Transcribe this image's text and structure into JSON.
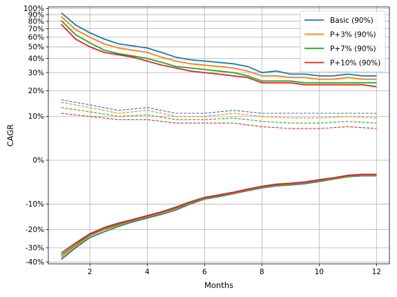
{
  "chart_data": {
    "type": "line",
    "xlabel": "Months",
    "ylabel": "CAGR",
    "xlim": [
      0.55,
      12.45
    ],
    "x_ticks": [
      2,
      4,
      6,
      8,
      10,
      12
    ],
    "y_scale": "symlog",
    "y_ticks": [
      {
        "value": 1.0,
        "label": "100%"
      },
      {
        "value": 0.9,
        "label": "90%"
      },
      {
        "value": 0.8,
        "label": "80%"
      },
      {
        "value": 0.7,
        "label": "70%"
      },
      {
        "value": 0.6,
        "label": "60%"
      },
      {
        "value": 0.5,
        "label": "50%"
      },
      {
        "value": 0.4,
        "label": "40%"
      },
      {
        "value": 0.3,
        "label": "30%"
      },
      {
        "value": 0.2,
        "label": "20%"
      },
      {
        "value": 0.1,
        "label": "10%"
      },
      {
        "value": 0.0,
        "label": "0%"
      },
      {
        "value": -0.1,
        "label": "-10%"
      },
      {
        "value": -0.2,
        "label": "-20%"
      },
      {
        "value": -0.3,
        "label": "-30%"
      },
      {
        "value": -0.4,
        "label": "-40%"
      }
    ],
    "grid": true,
    "legend_position": "top-right",
    "legend": [
      "Basic (90%)",
      "P+3% (90%)",
      "P+7% (90%)",
      "P+10% (90%)"
    ],
    "series": [
      {
        "name": "Basic (90%)",
        "color": "#1f77b4",
        "upper": {
          "x": [
            1,
            1.5,
            2,
            2.5,
            3,
            3.5,
            4,
            4.5,
            5,
            5.5,
            6,
            6.5,
            7,
            7.5,
            8,
            8.5,
            9,
            9.5,
            10,
            10.5,
            11,
            11.5,
            12
          ],
          "y": [
            0.93,
            0.75,
            0.65,
            0.58,
            0.53,
            0.51,
            0.49,
            0.45,
            0.41,
            0.39,
            0.38,
            0.37,
            0.36,
            0.34,
            0.3,
            0.31,
            0.29,
            0.29,
            0.28,
            0.28,
            0.29,
            0.28,
            0.28
          ]
        },
        "median": {
          "x": [
            1,
            2,
            3,
            4,
            5,
            6,
            7,
            8,
            9,
            10,
            11,
            12
          ],
          "y": [
            0.16,
            0.14,
            0.12,
            0.13,
            0.11,
            0.11,
            0.12,
            0.11,
            0.11,
            0.11,
            0.11,
            0.11
          ]
        },
        "lower": {
          "x": [
            1,
            1.5,
            2,
            2.5,
            3,
            3.5,
            4,
            4.5,
            5,
            5.5,
            6,
            6.5,
            7,
            7.5,
            8,
            8.5,
            9,
            9.5,
            10,
            10.5,
            11,
            11.5,
            12
          ],
          "y": [
            -0.38,
            -0.3,
            -0.24,
            -0.21,
            -0.185,
            -0.165,
            -0.15,
            -0.135,
            -0.12,
            -0.1,
            -0.085,
            -0.078,
            -0.07,
            -0.062,
            -0.055,
            -0.05,
            -0.048,
            -0.045,
            -0.04,
            -0.035,
            -0.03,
            -0.028,
            -0.028
          ]
        }
      },
      {
        "name": "P+3% (90%)",
        "color": "#ff7f0e",
        "upper": {
          "x": [
            1,
            1.5,
            2,
            2.5,
            3,
            3.5,
            4,
            4.5,
            5,
            5.5,
            6,
            6.5,
            7,
            7.5,
            8,
            8.5,
            9,
            9.5,
            10,
            10.5,
            11,
            11.5,
            12
          ],
          "y": [
            0.87,
            0.69,
            0.6,
            0.53,
            0.49,
            0.47,
            0.45,
            0.41,
            0.38,
            0.36,
            0.35,
            0.34,
            0.33,
            0.31,
            0.28,
            0.28,
            0.27,
            0.27,
            0.26,
            0.26,
            0.27,
            0.26,
            0.26
          ]
        },
        "median": {
          "x": [
            1,
            2,
            3,
            4,
            5,
            6,
            7,
            8,
            9,
            10,
            11,
            12
          ],
          "y": [
            0.15,
            0.13,
            0.11,
            0.12,
            0.1,
            0.1,
            0.11,
            0.1,
            0.095,
            0.095,
            0.1,
            0.095
          ]
        },
        "lower": {
          "x": [
            1,
            1.5,
            2,
            2.5,
            3,
            3.5,
            4,
            4.5,
            5,
            5.5,
            6,
            6.5,
            7,
            7.5,
            8,
            8.5,
            9,
            9.5,
            10,
            10.5,
            11,
            11.5,
            12
          ],
          "y": [
            -0.365,
            -0.29,
            -0.23,
            -0.2,
            -0.18,
            -0.16,
            -0.145,
            -0.13,
            -0.115,
            -0.097,
            -0.083,
            -0.076,
            -0.068,
            -0.06,
            -0.053,
            -0.048,
            -0.046,
            -0.043,
            -0.038,
            -0.034,
            -0.029,
            -0.027,
            -0.027
          ]
        }
      },
      {
        "name": "P+7% (90%)",
        "color": "#2ca02c",
        "upper": {
          "x": [
            1,
            1.5,
            2,
            2.5,
            3,
            3.5,
            4,
            4.5,
            5,
            5.5,
            6,
            6.5,
            7,
            7.5,
            8,
            8.5,
            9,
            9.5,
            10,
            10.5,
            11,
            11.5,
            12
          ],
          "y": [
            0.81,
            0.63,
            0.54,
            0.47,
            0.44,
            0.42,
            0.4,
            0.37,
            0.34,
            0.33,
            0.32,
            0.31,
            0.3,
            0.28,
            0.25,
            0.25,
            0.25,
            0.24,
            0.24,
            0.24,
            0.24,
            0.24,
            0.24
          ]
        },
        "median": {
          "x": [
            1,
            2,
            3,
            4,
            5,
            6,
            7,
            8,
            9,
            10,
            11,
            12
          ],
          "y": [
            0.13,
            0.115,
            0.1,
            0.105,
            0.09,
            0.09,
            0.095,
            0.085,
            0.08,
            0.08,
            0.085,
            0.08
          ]
        },
        "lower": {
          "x": [
            1,
            1.5,
            2,
            2.5,
            3,
            3.5,
            4,
            4.5,
            5,
            5.5,
            6,
            6.5,
            7,
            7.5,
            8,
            8.5,
            9,
            9.5,
            10,
            10.5,
            11,
            11.5,
            12
          ],
          "y": [
            -0.35,
            -0.28,
            -0.225,
            -0.195,
            -0.175,
            -0.158,
            -0.142,
            -0.128,
            -0.113,
            -0.095,
            -0.082,
            -0.075,
            -0.067,
            -0.059,
            -0.052,
            -0.047,
            -0.045,
            -0.042,
            -0.037,
            -0.033,
            -0.028,
            -0.026,
            -0.026
          ]
        }
      },
      {
        "name": "P+10% (90%)",
        "color": "#d62728",
        "upper": {
          "x": [
            1,
            1.5,
            2,
            2.5,
            3,
            3.5,
            4,
            4.5,
            5,
            5.5,
            6,
            6.5,
            7,
            7.5,
            8,
            8.5,
            9,
            9.5,
            10,
            10.5,
            11,
            11.5,
            12
          ],
          "y": [
            0.76,
            0.58,
            0.5,
            0.45,
            0.43,
            0.41,
            0.38,
            0.35,
            0.33,
            0.31,
            0.3,
            0.29,
            0.28,
            0.27,
            0.24,
            0.24,
            0.24,
            0.23,
            0.23,
            0.23,
            0.23,
            0.23,
            0.22
          ]
        },
        "median": {
          "x": [
            1,
            2,
            3,
            4,
            5,
            6,
            7,
            8,
            9,
            10,
            11,
            12
          ],
          "y": [
            0.11,
            0.1,
            0.09,
            0.09,
            0.08,
            0.08,
            0.08,
            0.07,
            0.065,
            0.065,
            0.07,
            0.065
          ]
        },
        "lower": {
          "x": [
            1,
            1.5,
            2,
            2.5,
            3,
            3.5,
            4,
            4.5,
            5,
            5.5,
            6,
            6.5,
            7,
            7.5,
            8,
            8.5,
            9,
            9.5,
            10,
            10.5,
            11,
            11.5,
            12
          ],
          "y": [
            -0.335,
            -0.27,
            -0.22,
            -0.19,
            -0.17,
            -0.155,
            -0.14,
            -0.126,
            -0.11,
            -0.093,
            -0.08,
            -0.073,
            -0.066,
            -0.058,
            -0.051,
            -0.046,
            -0.044,
            -0.041,
            -0.036,
            -0.032,
            -0.027,
            -0.025,
            -0.025
          ]
        }
      }
    ]
  }
}
